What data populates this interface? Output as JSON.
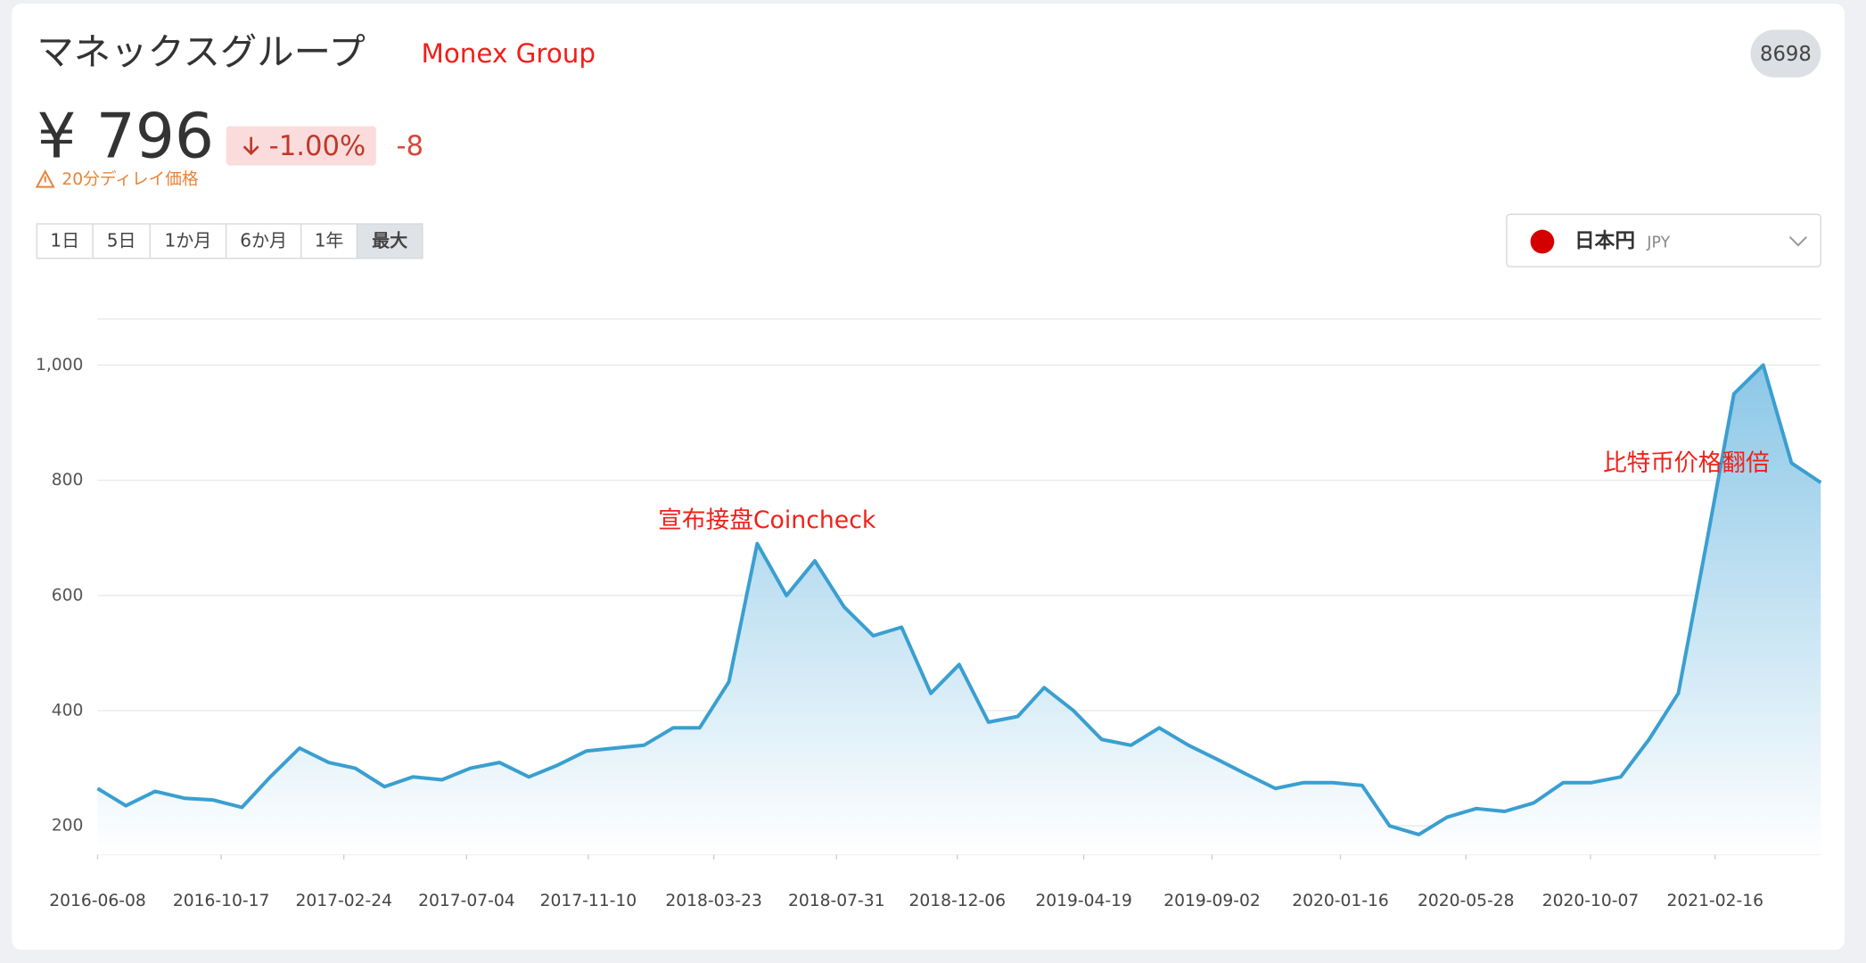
{
  "header": {
    "title": "マネックスグループ",
    "title_note": "Monex Group",
    "code": "8698",
    "price": "¥ 796",
    "change_pct": "-1.00%",
    "change_abs": "-8",
    "delay_note": "20分ディレイ価格",
    "ranges": [
      "1日",
      "5日",
      "1か月",
      "6か月",
      "1年",
      "最大"
    ],
    "currency": {
      "name": "日本円",
      "code": "JPY"
    }
  },
  "chart_data": {
    "type": "area",
    "color": "#3a9fd0",
    "grid": true,
    "x": [
      "2016-06-08",
      "2016-07-08",
      "2016-08-08",
      "2016-09-08",
      "2016-10-08",
      "2016-11-08",
      "2016-12-08",
      "2017-01-08",
      "2017-02-08",
      "2017-03-08",
      "2017-04-08",
      "2017-05-08",
      "2017-06-08",
      "2017-07-08",
      "2017-08-08",
      "2017-09-08",
      "2017-10-08",
      "2017-11-08",
      "2017-12-08",
      "2018-01-08",
      "2018-02-08",
      "2018-03-08",
      "2018-04-08",
      "2018-05-08",
      "2018-06-08",
      "2018-07-08",
      "2018-08-08",
      "2018-09-08",
      "2018-10-08",
      "2018-11-08",
      "2018-12-08",
      "2019-01-08",
      "2019-02-08",
      "2019-03-08",
      "2019-04-08",
      "2019-05-08",
      "2019-06-08",
      "2019-07-08",
      "2019-08-08",
      "2019-09-08",
      "2019-10-08",
      "2019-11-08",
      "2019-12-08",
      "2020-01-08",
      "2020-02-08",
      "2020-03-08",
      "2020-04-08",
      "2020-05-08",
      "2020-06-08",
      "2020-07-08",
      "2020-08-08",
      "2020-09-08",
      "2020-10-08",
      "2020-11-08",
      "2020-12-08",
      "2021-01-08",
      "2021-02-08",
      "2021-03-08",
      "2021-04-08",
      "2021-05-08",
      "2021-06-08"
    ],
    "values": [
      265,
      235,
      260,
      248,
      245,
      232,
      285,
      335,
      310,
      300,
      268,
      285,
      280,
      300,
      310,
      285,
      305,
      330,
      335,
      340,
      370,
      370,
      450,
      690,
      600,
      660,
      580,
      530,
      545,
      430,
      480,
      380,
      390,
      440,
      400,
      350,
      340,
      370,
      340,
      315,
      290,
      265,
      275,
      275,
      270,
      200,
      185,
      215,
      230,
      225,
      240,
      275,
      275,
      285,
      350,
      430,
      700,
      950,
      1000,
      830,
      796
    ],
    "xlim": [
      "2016-06-08",
      "2021-06-08"
    ],
    "xticks": [
      "2016-06-08",
      "2016-10-17",
      "2017-02-24",
      "2017-07-04",
      "2017-11-10",
      "2018-03-23",
      "2018-07-31",
      "2018-12-06",
      "2019-04-19",
      "2019-09-02",
      "2020-01-16",
      "2020-05-28",
      "2020-10-07",
      "2021-02-16"
    ],
    "ylim": [
      150,
      1080
    ],
    "yticks": [
      200,
      400,
      600,
      800,
      {
        "value": 1000,
        "label": "1,000"
      }
    ],
    "annotations": [
      "宣布接盘Coincheck",
      "比特币价格翻倍"
    ]
  }
}
